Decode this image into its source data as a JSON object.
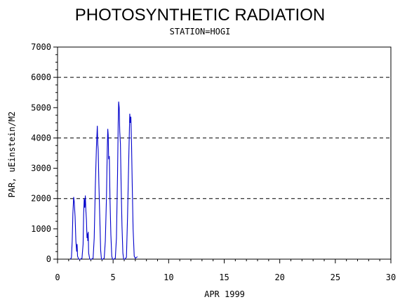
{
  "chart_data": {
    "type": "line",
    "title": "PHOTOSYNTHETIC RADIATION",
    "subtitle": "STATION=HOGI",
    "xlabel": "APR 1999",
    "ylabel": "PAR, uEinstein/M2",
    "xlim": [
      0,
      30
    ],
    "ylim": [
      0,
      7000
    ],
    "xticks": [
      "0",
      "5",
      "10",
      "15",
      "20",
      "25",
      "30"
    ],
    "yticks": [
      "0",
      "1000",
      "2000",
      "3000",
      "4000",
      "5000",
      "6000",
      "7000"
    ],
    "gridlines_y": [
      2000,
      4000,
      6000
    ],
    "grid": "horizontal dashed",
    "color": "#0000cc",
    "series": [
      {
        "x": [
          1.15,
          1.25,
          1.32,
          1.38,
          1.45,
          1.5,
          1.58,
          1.65,
          1.72,
          1.76,
          1.8,
          1.9,
          2.05,
          2.2,
          2.3,
          2.35,
          2.4,
          2.45,
          2.5,
          2.55,
          2.6,
          2.65,
          2.7,
          2.72,
          2.76,
          2.8,
          2.9,
          3.05,
          3.2,
          3.3,
          3.4,
          3.5,
          3.58,
          3.62,
          3.66,
          3.72,
          3.8,
          3.88,
          3.95,
          4.05,
          4.2,
          4.3,
          4.4,
          4.48,
          4.52,
          4.56,
          4.6,
          4.66,
          4.72,
          4.8,
          4.88,
          4.95,
          5.05,
          5.2,
          5.3,
          5.4,
          5.46,
          5.5,
          5.55,
          5.6,
          5.66,
          5.72,
          5.8,
          5.88,
          5.95,
          6.05,
          6.2,
          6.3,
          6.42,
          6.5,
          6.55,
          6.6,
          6.66,
          6.72,
          6.8,
          6.9,
          7.0,
          7.1,
          7.2
        ],
        "y": [
          0,
          50,
          600,
          1500,
          2050,
          1900,
          1400,
          600,
          250,
          500,
          100,
          0,
          0,
          30,
          500,
          1500,
          2000,
          1700,
          2100,
          1600,
          1300,
          700,
          850,
          600,
          900,
          200,
          0,
          0,
          30,
          700,
          2400,
          3700,
          4400,
          3800,
          3600,
          2500,
          1400,
          300,
          0,
          0,
          30,
          600,
          2000,
          3700,
          4300,
          4100,
          3300,
          3400,
          2000,
          800,
          100,
          0,
          0,
          30,
          700,
          2800,
          4500,
          5200,
          5000,
          4200,
          3800,
          2500,
          1100,
          200,
          0,
          0,
          60,
          1400,
          3500,
          4800,
          4500,
          4700,
          3800,
          2500,
          1000,
          100,
          30,
          60,
          80
        ]
      }
    ]
  }
}
